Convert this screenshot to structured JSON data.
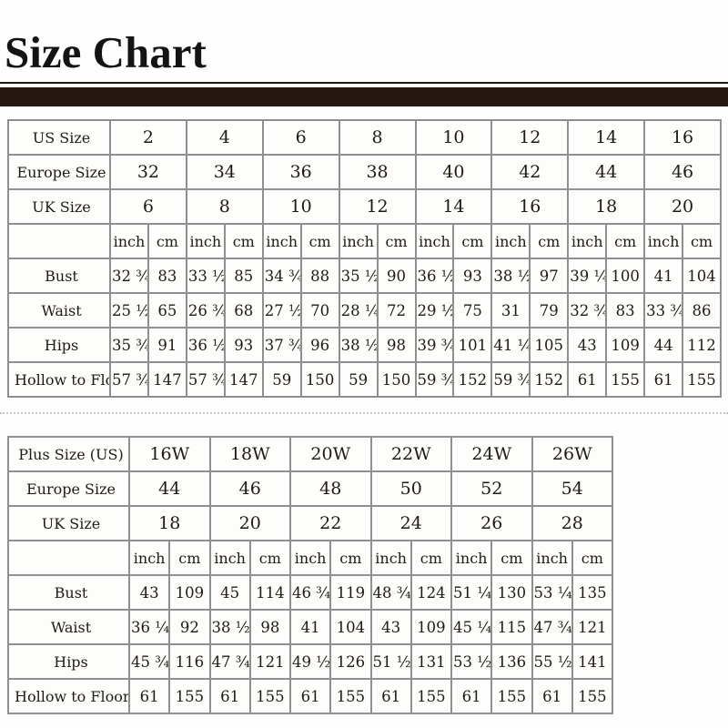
{
  "page": {
    "title": "Size Chart"
  },
  "colors": {
    "cream_cell": "#f6f3d9",
    "white_cell": "#fdfdfb",
    "grid_border": "#8f8f8f",
    "outer_border": "#6f6f6f",
    "divider_bar": "#241712",
    "text": "#201a12"
  },
  "units": [
    "inch",
    "cm"
  ],
  "tables": [
    {
      "name": "standard-sizes",
      "size_rows": [
        {
          "label": "US Size",
          "values": [
            "2",
            "4",
            "6",
            "8",
            "10",
            "12",
            "14",
            "16"
          ]
        },
        {
          "label": "Europe Size",
          "values": [
            "32",
            "34",
            "36",
            "38",
            "40",
            "42",
            "44",
            "46"
          ]
        },
        {
          "label": "UK Size",
          "values": [
            "6",
            "8",
            "10",
            "12",
            "14",
            "16",
            "18",
            "20"
          ]
        }
      ],
      "measurement_rows": [
        {
          "label": "Bust",
          "pairs": [
            [
              "32 ¾",
              "83"
            ],
            [
              "33 ½",
              "85"
            ],
            [
              "34 ¾",
              "88"
            ],
            [
              "35 ½",
              "90"
            ],
            [
              "36 ½",
              "93"
            ],
            [
              "38 ½",
              "97"
            ],
            [
              "39 ¼",
              "100"
            ],
            [
              "41",
              "104"
            ]
          ]
        },
        {
          "label": "Waist",
          "pairs": [
            [
              "25 ½",
              "65"
            ],
            [
              "26 ¾",
              "68"
            ],
            [
              "27 ½",
              "70"
            ],
            [
              "28 ¼",
              "72"
            ],
            [
              "29 ½",
              "75"
            ],
            [
              "31",
              "79"
            ],
            [
              "32 ¾",
              "83"
            ],
            [
              "33 ¾",
              "86"
            ]
          ]
        },
        {
          "label": "Hips",
          "pairs": [
            [
              "35 ¾",
              "91"
            ],
            [
              "36 ½",
              "93"
            ],
            [
              "37 ¾",
              "96"
            ],
            [
              "38 ½",
              "98"
            ],
            [
              "39 ¾",
              "101"
            ],
            [
              "41 ¼",
              "105"
            ],
            [
              "43",
              "109"
            ],
            [
              "44",
              "112"
            ]
          ]
        },
        {
          "label": "Hollow to Floor",
          "pairs": [
            [
              "57 ¾",
              "147"
            ],
            [
              "57 ¾",
              "147"
            ],
            [
              "59",
              "150"
            ],
            [
              "59",
              "150"
            ],
            [
              "59 ¾",
              "152"
            ],
            [
              "59 ¾",
              "152"
            ],
            [
              "61",
              "155"
            ],
            [
              "61",
              "155"
            ]
          ]
        }
      ]
    },
    {
      "name": "plus-sizes",
      "size_rows": [
        {
          "label": "Plus Size (US)",
          "values": [
            "16W",
            "18W",
            "20W",
            "22W",
            "24W",
            "26W"
          ]
        },
        {
          "label": "Europe Size",
          "values": [
            "44",
            "46",
            "48",
            "50",
            "52",
            "54"
          ]
        },
        {
          "label": "UK Size",
          "values": [
            "18",
            "20",
            "22",
            "24",
            "26",
            "28"
          ]
        }
      ],
      "measurement_rows": [
        {
          "label": "Bust",
          "pairs": [
            [
              "43",
              "109"
            ],
            [
              "45",
              "114"
            ],
            [
              "46 ¾",
              "119"
            ],
            [
              "48 ¾",
              "124"
            ],
            [
              "51 ¼",
              "130"
            ],
            [
              "53 ¼",
              "135"
            ]
          ]
        },
        {
          "label": "Waist",
          "pairs": [
            [
              "36 ¼",
              "92"
            ],
            [
              "38 ½",
              "98"
            ],
            [
              "41",
              "104"
            ],
            [
              "43",
              "109"
            ],
            [
              "45 ¼",
              "115"
            ],
            [
              "47 ¾",
              "121"
            ]
          ]
        },
        {
          "label": "Hips",
          "pairs": [
            [
              "45 ¾",
              "116"
            ],
            [
              "47 ¾",
              "121"
            ],
            [
              "49 ½",
              "126"
            ],
            [
              "51 ½",
              "131"
            ],
            [
              "53 ½",
              "136"
            ],
            [
              "55 ½",
              "141"
            ]
          ]
        },
        {
          "label": "Hollow to Floor",
          "pairs": [
            [
              "61",
              "155"
            ],
            [
              "61",
              "155"
            ],
            [
              "61",
              "155"
            ],
            [
              "61",
              "155"
            ],
            [
              "61",
              "155"
            ],
            [
              "61",
              "155"
            ]
          ]
        }
      ]
    }
  ]
}
